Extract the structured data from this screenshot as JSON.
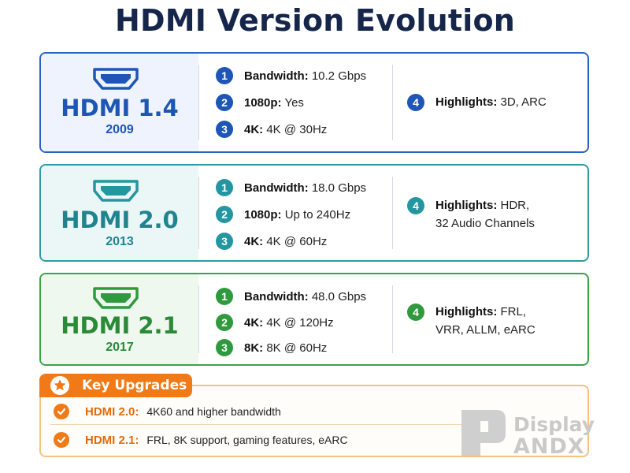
{
  "title": "HDMI Version Evolution",
  "colors": {
    "hdmi14": "#1e56b5",
    "hdmi20": "#20848f",
    "hdmi21": "#2b8a37",
    "upgrades": "#ef7a17",
    "title": "#16264b"
  },
  "cards": [
    {
      "version": "HDMI 1.4",
      "year": "2009",
      "icon": "hdmi-port-icon",
      "features": [
        {
          "num": "1",
          "label": "Bandwidth:",
          "value": "10.2 Gbps"
        },
        {
          "num": "2",
          "label": "1080p:",
          "value": "Yes"
        },
        {
          "num": "3",
          "label": "4K:",
          "value": "4K @ 30Hz"
        }
      ],
      "highlight": {
        "num": "4",
        "label": "Highlights:",
        "line1": "3D, ARC",
        "line2": ""
      }
    },
    {
      "version": "HDMI 2.0",
      "year": "2013",
      "icon": "hdmi-port-icon",
      "features": [
        {
          "num": "1",
          "label": "Bandwidth:",
          "value": "18.0 Gbps"
        },
        {
          "num": "2",
          "label": "1080p:",
          "value": "Up to 240Hz"
        },
        {
          "num": "3",
          "label": "4K:",
          "value": "4K @ 60Hz"
        }
      ],
      "highlight": {
        "num": "4",
        "label": "Highlights:",
        "line1": "HDR,",
        "line2": "32 Audio Channels"
      }
    },
    {
      "version": "HDMI 2.1",
      "year": "2017",
      "icon": "hdmi-port-icon",
      "features": [
        {
          "num": "1",
          "label": "Bandwidth:",
          "value": "48.0 Gbps"
        },
        {
          "num": "2",
          "label": "4K:",
          "value": "4K @ 120Hz"
        },
        {
          "num": "3",
          "label": "8K:",
          "value": "8K @ 60Hz"
        }
      ],
      "highlight": {
        "num": "4",
        "label": "Highlights:",
        "line1": "FRL,",
        "line2": "VRR, ALLM, eARC"
      }
    }
  ],
  "key_upgrades": {
    "title": "Key Upgrades",
    "icon": "star-icon",
    "items": [
      {
        "icon": "check-icon",
        "label": "HDMI 2.0:",
        "text": "4K60 and higher bandwidth"
      },
      {
        "icon": "check-icon",
        "label": "HDMI 2.1:",
        "text": "FRL, 8K support, gaming features, eARC"
      }
    ]
  },
  "watermark": {
    "line1": "Display",
    "line2": "ANDX"
  }
}
